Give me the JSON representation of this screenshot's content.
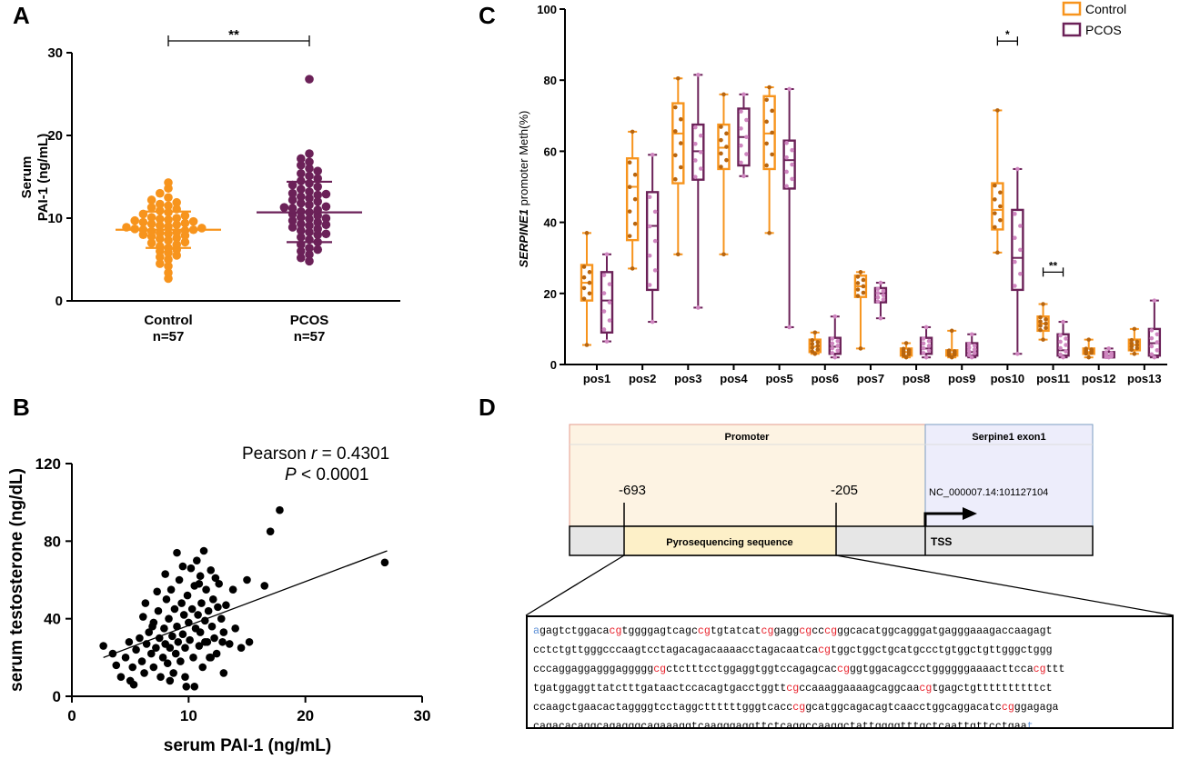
{
  "colors": {
    "control": "#f7941d",
    "pcos": "#6b2158",
    "scatter": "#000000"
  },
  "chart_data": [
    {
      "panel": "A",
      "type": "scatter",
      "ylabel": "Serum PAI-1 (ng/mL)",
      "ylim": [
        0,
        30
      ],
      "yticks": [
        0,
        10,
        20,
        30
      ],
      "categories": [
        "Control\nn=57",
        "PCOS\nn=57"
      ],
      "category_lines": [
        [
          "Control",
          "n=57"
        ],
        [
          "PCOS",
          "n=57"
        ]
      ],
      "significance": "**",
      "series": [
        {
          "name": "Control",
          "mean": 8.6,
          "sd_low": 6.4,
          "sd_high": 10.8,
          "values": [
            2.7,
            3.4,
            4.2,
            4.5,
            5.0,
            5.3,
            5.5,
            5.8,
            6.0,
            6.2,
            6.4,
            6.6,
            6.8,
            7.0,
            7.1,
            7.3,
            7.5,
            7.6,
            7.8,
            7.9,
            8.0,
            8.1,
            8.2,
            8.3,
            8.4,
            8.5,
            8.6,
            8.6,
            8.7,
            8.8,
            8.9,
            9.0,
            9.1,
            9.2,
            9.3,
            9.4,
            9.5,
            9.6,
            9.7,
            9.8,
            9.9,
            10.0,
            10.1,
            10.3,
            10.5,
            10.7,
            10.9,
            11.1,
            11.3,
            11.5,
            11.7,
            11.9,
            12.2,
            12.5,
            13.0,
            13.6,
            14.3
          ]
        },
        {
          "name": "PCOS",
          "mean": 10.7,
          "sd_low": 7.1,
          "sd_high": 14.4,
          "values": [
            4.8,
            5.2,
            5.6,
            6.0,
            6.4,
            6.8,
            7.1,
            7.4,
            7.7,
            8.0,
            8.3,
            8.5,
            8.7,
            8.9,
            9.1,
            9.3,
            9.5,
            9.7,
            9.9,
            10.1,
            10.3,
            10.5,
            10.7,
            10.8,
            11.0,
            11.2,
            11.4,
            11.6,
            11.8,
            12.0,
            12.2,
            12.4,
            12.6,
            12.8,
            13.0,
            13.2,
            13.5,
            13.8,
            14.0,
            14.2,
            14.5,
            14.8,
            15.1,
            15.4,
            15.7,
            16.0,
            16.4,
            16.8,
            17.2,
            17.8,
            9.2,
            10.0,
            11.3,
            12.9,
            8.1,
            6.2,
            26.8
          ]
        }
      ]
    },
    {
      "panel": "B",
      "type": "scatter",
      "xlabel": "serum PAI-1 (ng/mL)",
      "ylabel": "serum testosterone (ng/dL)",
      "xlim": [
        0,
        30
      ],
      "ylim": [
        0,
        120
      ],
      "xticks": [
        0,
        10,
        20,
        30
      ],
      "yticks": [
        0,
        40,
        80,
        120
      ],
      "annotation": {
        "pearson_prefix": "Pearson ",
        "r_symbol": "r",
        "r_value": " = 0.4301",
        "p_symbol": "P",
        "p_value": " < 0.0001"
      },
      "regression_line": [
        [
          2.7,
          20
        ],
        [
          27,
          75
        ]
      ],
      "points": [
        [
          2.7,
          26
        ],
        [
          3.5,
          22
        ],
        [
          4.2,
          10
        ],
        [
          4.6,
          20
        ],
        [
          4.9,
          28
        ],
        [
          5.0,
          8
        ],
        [
          5.2,
          15
        ],
        [
          5.5,
          24
        ],
        [
          5.8,
          30
        ],
        [
          6.0,
          18
        ],
        [
          6.1,
          41
        ],
        [
          6.2,
          12
        ],
        [
          6.4,
          27
        ],
        [
          6.6,
          33
        ],
        [
          6.8,
          22
        ],
        [
          7.0,
          38
        ],
        [
          7.0,
          15
        ],
        [
          7.2,
          25
        ],
        [
          7.4,
          44
        ],
        [
          7.5,
          30
        ],
        [
          7.6,
          10
        ],
        [
          7.8,
          20
        ],
        [
          7.9,
          35
        ],
        [
          8.0,
          27
        ],
        [
          8.1,
          50
        ],
        [
          8.2,
          17
        ],
        [
          8.3,
          40
        ],
        [
          8.4,
          25
        ],
        [
          8.5,
          55
        ],
        [
          8.6,
          31
        ],
        [
          8.7,
          12
        ],
        [
          8.8,
          45
        ],
        [
          8.9,
          22
        ],
        [
          9.0,
          74
        ],
        [
          9.0,
          36
        ],
        [
          9.1,
          28
        ],
        [
          9.2,
          60
        ],
        [
          9.3,
          18
        ],
        [
          9.4,
          48
        ],
        [
          9.5,
          32
        ],
        [
          9.6,
          42
        ],
        [
          9.7,
          25
        ],
        [
          9.8,
          5
        ],
        [
          9.9,
          52
        ],
        [
          10.0,
          38
        ],
        [
          10.1,
          29
        ],
        [
          10.2,
          66
        ],
        [
          10.3,
          45
        ],
        [
          10.4,
          20
        ],
        [
          10.5,
          57
        ],
        [
          10.6,
          35
        ],
        [
          10.7,
          70
        ],
        [
          10.8,
          42
        ],
        [
          10.9,
          26
        ],
        [
          11.0,
          62
        ],
        [
          11.0,
          33
        ],
        [
          11.1,
          48
        ],
        [
          11.2,
          15
        ],
        [
          11.3,
          75
        ],
        [
          11.4,
          39
        ],
        [
          11.5,
          55
        ],
        [
          11.6,
          28
        ],
        [
          11.7,
          44
        ],
        [
          11.8,
          20
        ],
        [
          11.9,
          65
        ],
        [
          12.0,
          36
        ],
        [
          12.1,
          50
        ],
        [
          12.2,
          30
        ],
        [
          12.4,
          22
        ],
        [
          12.5,
          46
        ],
        [
          12.6,
          58
        ],
        [
          12.8,
          40
        ],
        [
          13.0,
          33
        ],
        [
          13.0,
          12
        ],
        [
          13.2,
          47
        ],
        [
          13.5,
          27
        ],
        [
          13.8,
          55
        ],
        [
          14.0,
          35
        ],
        [
          14.5,
          25
        ],
        [
          15.0,
          60
        ],
        [
          15.2,
          28
        ],
        [
          16.5,
          57
        ],
        [
          17.0,
          85
        ],
        [
          17.8,
          96
        ],
        [
          26.8,
          69
        ],
        [
          6.3,
          48
        ],
        [
          7.3,
          54
        ],
        [
          8.0,
          63
        ],
        [
          9.5,
          67
        ],
        [
          10.5,
          5
        ],
        [
          5.3,
          6
        ],
        [
          6.9,
          36
        ],
        [
          11.9,
          20
        ],
        [
          12.9,
          28
        ],
        [
          3.8,
          16
        ],
        [
          9.7,
          10
        ],
        [
          10.9,
          58
        ],
        [
          8.4,
          8
        ],
        [
          11.4,
          28
        ],
        [
          12.3,
          61
        ]
      ]
    },
    {
      "panel": "C",
      "type": "box",
      "ylabel_italic": "SERPINE1",
      "ylabel_rest": " promoter Meth(%)",
      "ylim": [
        0,
        100
      ],
      "yticks": [
        0,
        20,
        40,
        60,
        80,
        100
      ],
      "categories": [
        "pos1",
        "pos2",
        "pos3",
        "pos4",
        "pos5",
        "pos6",
        "pos7",
        "pos8",
        "pos9",
        "pos10",
        "pos11",
        "pos12",
        "pos13"
      ],
      "legend": [
        "Control",
        "PCOS"
      ],
      "significance": [
        {
          "category": "pos10",
          "label": "*"
        },
        {
          "category": "pos11",
          "label": "**"
        }
      ],
      "series": [
        {
          "name": "Control",
          "boxes": [
            [
              5.5,
              18,
              23,
              28,
              37
            ],
            [
              27,
              35,
              50,
              58,
              65.5
            ],
            [
              31,
              51,
              65,
              73.5,
              80.5
            ],
            [
              31,
              55,
              61,
              67.5,
              76
            ],
            [
              37,
              55,
              65,
              75.5,
              78
            ],
            [
              3,
              3.5,
              5,
              7,
              9
            ],
            [
              4.5,
              19,
              22,
              25,
              26
            ],
            [
              2,
              2.5,
              3.5,
              4.5,
              6
            ],
            [
              2,
              2.5,
              3,
              4,
              9.5
            ],
            [
              31.5,
              38,
              43.5,
              51,
              71.5
            ],
            [
              7,
              9.5,
              11.5,
              13.5,
              17
            ],
            [
              2,
              3,
              3.5,
              4.5,
              7
            ],
            [
              3,
              4,
              5.5,
              7,
              10
            ]
          ]
        },
        {
          "name": "PCOS",
          "boxes": [
            [
              6.5,
              9,
              18,
              26,
              31
            ],
            [
              12,
              21,
              39,
              48.5,
              59
            ],
            [
              16,
              52,
              60,
              67.5,
              81.5
            ],
            [
              53,
              56,
              64,
              72,
              76
            ],
            [
              10.5,
              49.5,
              57.5,
              63,
              77.5
            ],
            [
              2,
              3,
              5,
              7.5,
              13.5
            ],
            [
              13,
              17.5,
              20,
              21.5,
              23
            ],
            [
              2,
              3,
              4.5,
              7.5,
              10.5
            ],
            [
              2,
              2.5,
              3.5,
              6,
              8.5
            ],
            [
              3,
              21,
              30,
              43.5,
              55
            ],
            [
              2,
              2.5,
              4,
              8.5,
              12
            ],
            [
              2,
              2,
              2.5,
              3.5,
              4.5
            ],
            [
              2,
              2.5,
              6,
              10,
              18
            ]
          ]
        }
      ]
    }
  ],
  "panel_letters": {
    "a": "A",
    "b": "B",
    "c": "C",
    "d": "D"
  },
  "diagram": {
    "promoter_label": "Promoter",
    "exon_label": "Serpine1 exon1",
    "pos_left": "-693",
    "pos_right": "-205",
    "accession": "NC_000007.14:101127104",
    "pyro_label": "Pyrosequencing sequence",
    "tss_label": "TSS",
    "sequence_lines": [
      [
        [
          "a",
          "b"
        ],
        [
          "gagtctggaca",
          ""
        ],
        [
          "cg",
          "r"
        ],
        [
          "tggggagtcagc",
          ""
        ],
        [
          "cg",
          "r"
        ],
        [
          "tgtatcat",
          ""
        ],
        [
          "cg",
          "r"
        ],
        [
          "gagg",
          ""
        ],
        [
          "cg",
          "r"
        ],
        [
          "cc",
          ""
        ],
        [
          "cg",
          "r"
        ],
        [
          "ggcacatggcagggatgagggaaagaccaagagt",
          ""
        ]
      ],
      [
        [
          "cctctgttgggcccaagtcctagacagacaaaacctagacaatca",
          ""
        ],
        [
          "cg",
          "r"
        ],
        [
          "tggctggctgcatgccctgtggctgttgggctggg",
          ""
        ]
      ],
      [
        [
          "cccaggaggagggaggggg",
          ""
        ],
        [
          "cg",
          "r"
        ],
        [
          "ctctttcctggaggtggtccagagcac",
          ""
        ],
        [
          "cg",
          "r"
        ],
        [
          "ggtggacagccctggggggaaaacttcca",
          ""
        ],
        [
          "cg",
          "r"
        ],
        [
          "ttt",
          ""
        ]
      ],
      [
        [
          "tgatggaggttatctttgataactccacagtgacctggtt",
          ""
        ],
        [
          "cg",
          "r"
        ],
        [
          "ccaaaggaaaagcaggcaa",
          ""
        ],
        [
          "cg",
          "r"
        ],
        [
          "tgagctgttttttttttct",
          ""
        ]
      ],
      [
        [
          "ccaagctgaacactaggggtcctaggcttttttgggtcacc",
          ""
        ],
        [
          "cg",
          "r"
        ],
        [
          "gcatggcagacagtcaacctggcaggacatc",
          ""
        ],
        [
          "cg",
          "r"
        ],
        [
          "ggagaga",
          ""
        ]
      ],
      [
        [
          "cagacacaggcagagggcagaaaggtcaagggaggttctcaggccaaggctattggggtttgctcaattgttcctgaa",
          ""
        ],
        [
          "t",
          "b"
        ]
      ]
    ]
  }
}
